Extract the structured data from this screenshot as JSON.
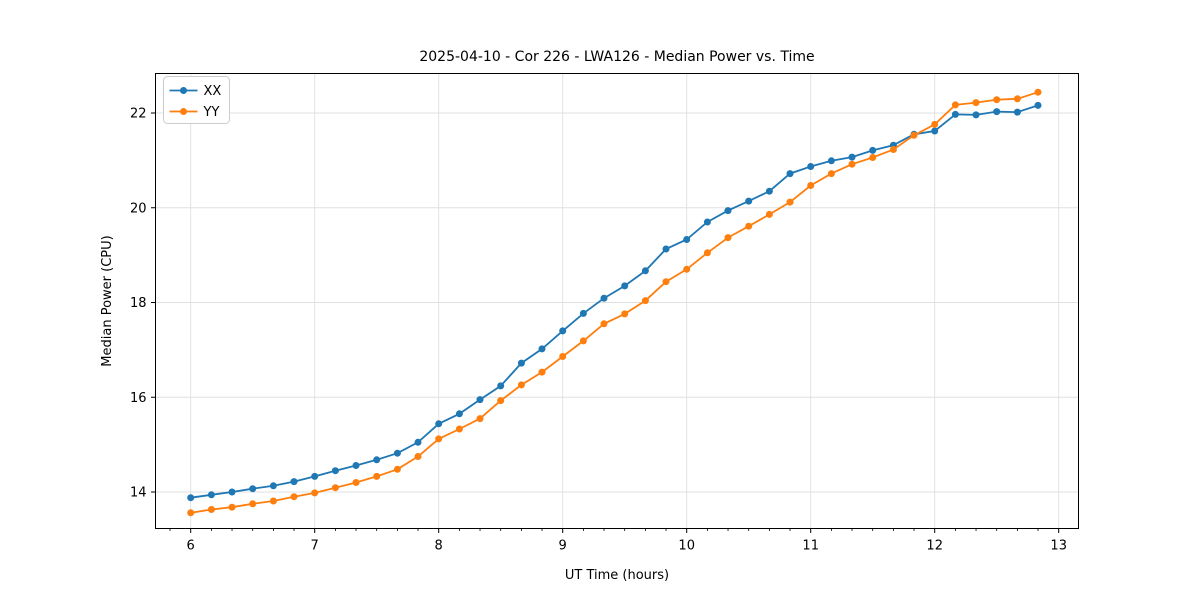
{
  "chart_data": {
    "type": "line",
    "title": "2025-04-10 - Cor 226 - LWA126 - Median Power vs. Time",
    "xlabel": "UT Time (hours)",
    "ylabel": "Median Power (CPU)",
    "xlim": [
      5.72,
      13.16
    ],
    "ylim": [
      13.23,
      22.83
    ],
    "x_major_ticks": [
      6,
      7,
      8,
      9,
      10,
      11,
      12,
      13
    ],
    "x_minor_tick_step": 0.1667,
    "y_major_ticks": [
      14,
      16,
      18,
      20,
      22
    ],
    "grid": true,
    "grid_color": "#e0e0e0",
    "legend_position": "upper left",
    "marker": "circle",
    "x": [
      6,
      6.167,
      6.333,
      6.5,
      6.667,
      6.833,
      7,
      7.167,
      7.333,
      7.5,
      7.667,
      7.833,
      8,
      8.167,
      8.333,
      8.5,
      8.667,
      8.833,
      9,
      9.167,
      9.333,
      9.5,
      9.667,
      9.833,
      10,
      10.167,
      10.333,
      10.5,
      10.667,
      10.833,
      11,
      11.167,
      11.333,
      11.5,
      11.667,
      11.833,
      12,
      12.167,
      12.333,
      12.5,
      12.667,
      12.833
    ],
    "series": [
      {
        "name": "XX",
        "color": "#1f77b4",
        "values": [
          13.88,
          13.94,
          14.0,
          14.07,
          14.13,
          14.22,
          14.33,
          14.45,
          14.56,
          14.68,
          14.82,
          15.05,
          15.44,
          15.65,
          15.95,
          16.24,
          16.72,
          17.02,
          17.4,
          17.77,
          18.09,
          18.35,
          18.67,
          19.13,
          19.33,
          19.7,
          19.94,
          20.14,
          20.35,
          20.72,
          20.87,
          20.99,
          21.07,
          21.21,
          21.32,
          21.55,
          21.62,
          21.97,
          21.96,
          22.03,
          22.02,
          22.16
        ]
      },
      {
        "name": "YY",
        "color": "#ff7f0e",
        "values": [
          13.56,
          13.63,
          13.68,
          13.75,
          13.81,
          13.9,
          13.98,
          14.09,
          14.2,
          14.33,
          14.48,
          14.75,
          15.12,
          15.33,
          15.55,
          15.93,
          16.26,
          16.53,
          16.86,
          17.19,
          17.55,
          17.76,
          18.04,
          18.44,
          18.7,
          19.05,
          19.37,
          19.61,
          19.86,
          20.12,
          20.47,
          20.72,
          20.92,
          21.06,
          21.23,
          21.53,
          21.76,
          22.17,
          22.22,
          22.28,
          22.3,
          22.44
        ]
      }
    ]
  }
}
